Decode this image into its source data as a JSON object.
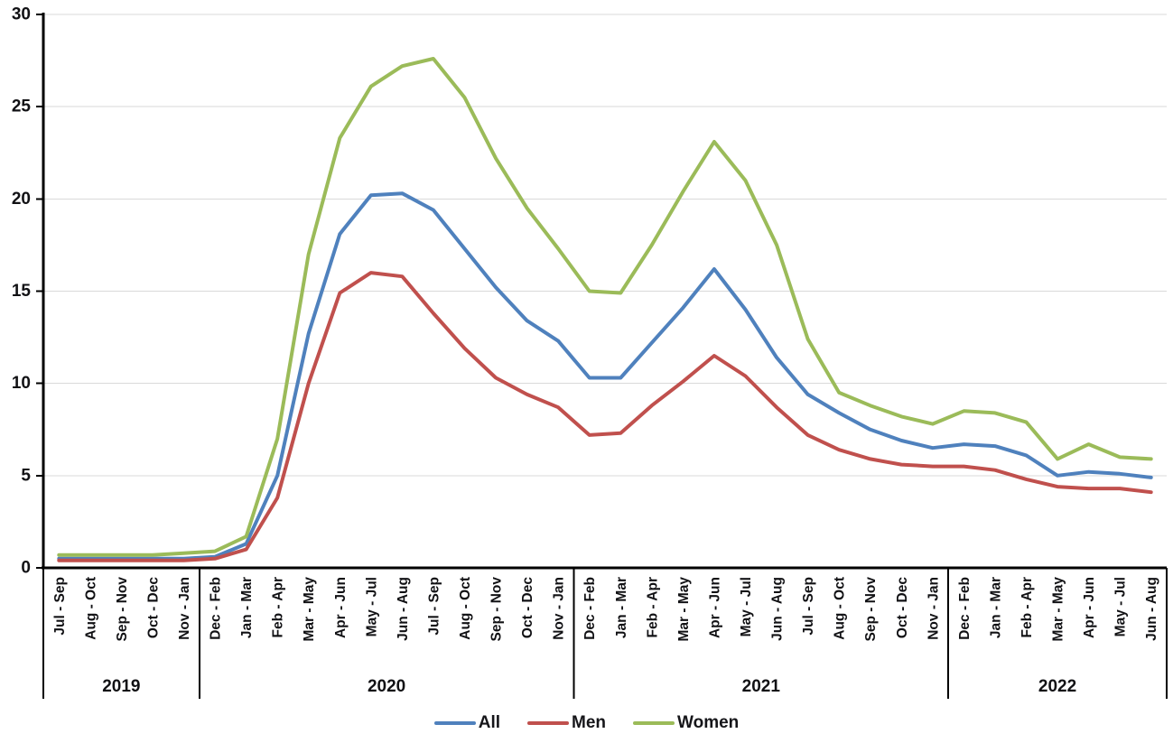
{
  "chart_data": {
    "type": "line",
    "title": "",
    "xlabel": "",
    "ylabel": "",
    "ylim": [
      0,
      30
    ],
    "y_ticks": [
      0,
      5,
      10,
      15,
      20,
      25,
      30
    ],
    "grid": true,
    "gridline_color": "#D9D9D9",
    "axis_color": "#000000",
    "legend_position": "bottom",
    "groups": [
      {
        "year": "2019",
        "categories": [
          "Jul - Sep",
          "Aug - Oct",
          "Sep - Nov",
          "Oct - Dec",
          "Nov - Jan"
        ]
      },
      {
        "year": "2020",
        "categories": [
          "Dec - Feb",
          "Jan - Mar",
          "Feb - Apr",
          "Mar - May",
          "Apr - Jun",
          "May - Jul",
          "Jun - Aug",
          "Jul - Sep",
          "Aug - Oct",
          "Sep - Nov",
          "Oct - Dec",
          "Nov - Jan"
        ]
      },
      {
        "year": "2021",
        "categories": [
          "Dec - Feb",
          "Jan - Mar",
          "Feb - Apr",
          "Mar - May",
          "Apr - Jun",
          "May - Jul",
          "Jun - Aug",
          "Jul - Sep",
          "Aug - Oct",
          "Sep - Nov",
          "Oct - Dec",
          "Nov - Jan"
        ]
      },
      {
        "year": "2022",
        "categories": [
          "Dec - Feb",
          "Jan - Mar",
          "Feb - Apr",
          "Mar - May",
          "Apr - Jun",
          "May - Jul",
          "Jun - Aug"
        ]
      }
    ],
    "series": [
      {
        "name": "All",
        "color": "#4F81BD",
        "values": [
          0.5,
          0.5,
          0.5,
          0.5,
          0.5,
          0.6,
          1.3,
          5.0,
          12.7,
          18.1,
          20.2,
          20.3,
          19.4,
          17.3,
          15.2,
          13.4,
          12.3,
          10.3,
          10.3,
          12.2,
          14.1,
          16.2,
          14.0,
          11.4,
          9.4,
          8.4,
          7.5,
          6.9,
          6.5,
          6.7,
          6.6,
          6.1,
          5.0,
          5.2,
          5.1,
          4.9
        ]
      },
      {
        "name": "Men",
        "color": "#C0504D",
        "values": [
          0.4,
          0.4,
          0.4,
          0.4,
          0.4,
          0.5,
          1.0,
          3.8,
          10.0,
          14.9,
          16.0,
          15.8,
          13.8,
          11.9,
          10.3,
          9.4,
          8.7,
          7.2,
          7.3,
          8.8,
          10.1,
          11.5,
          10.4,
          8.7,
          7.2,
          6.4,
          5.9,
          5.6,
          5.5,
          5.5,
          5.3,
          4.8,
          4.4,
          4.3,
          4.3,
          4.1
        ]
      },
      {
        "name": "Women",
        "color": "#9BBB59",
        "values": [
          0.7,
          0.7,
          0.7,
          0.7,
          0.8,
          0.9,
          1.7,
          7.0,
          17.0,
          23.3,
          26.1,
          27.2,
          27.6,
          25.5,
          22.2,
          19.5,
          17.3,
          15.0,
          14.9,
          17.5,
          20.4,
          23.1,
          21.0,
          17.5,
          12.4,
          9.5,
          8.8,
          8.2,
          7.8,
          8.5,
          8.4,
          7.9,
          5.9,
          6.7,
          6.0,
          5.9
        ]
      }
    ]
  }
}
